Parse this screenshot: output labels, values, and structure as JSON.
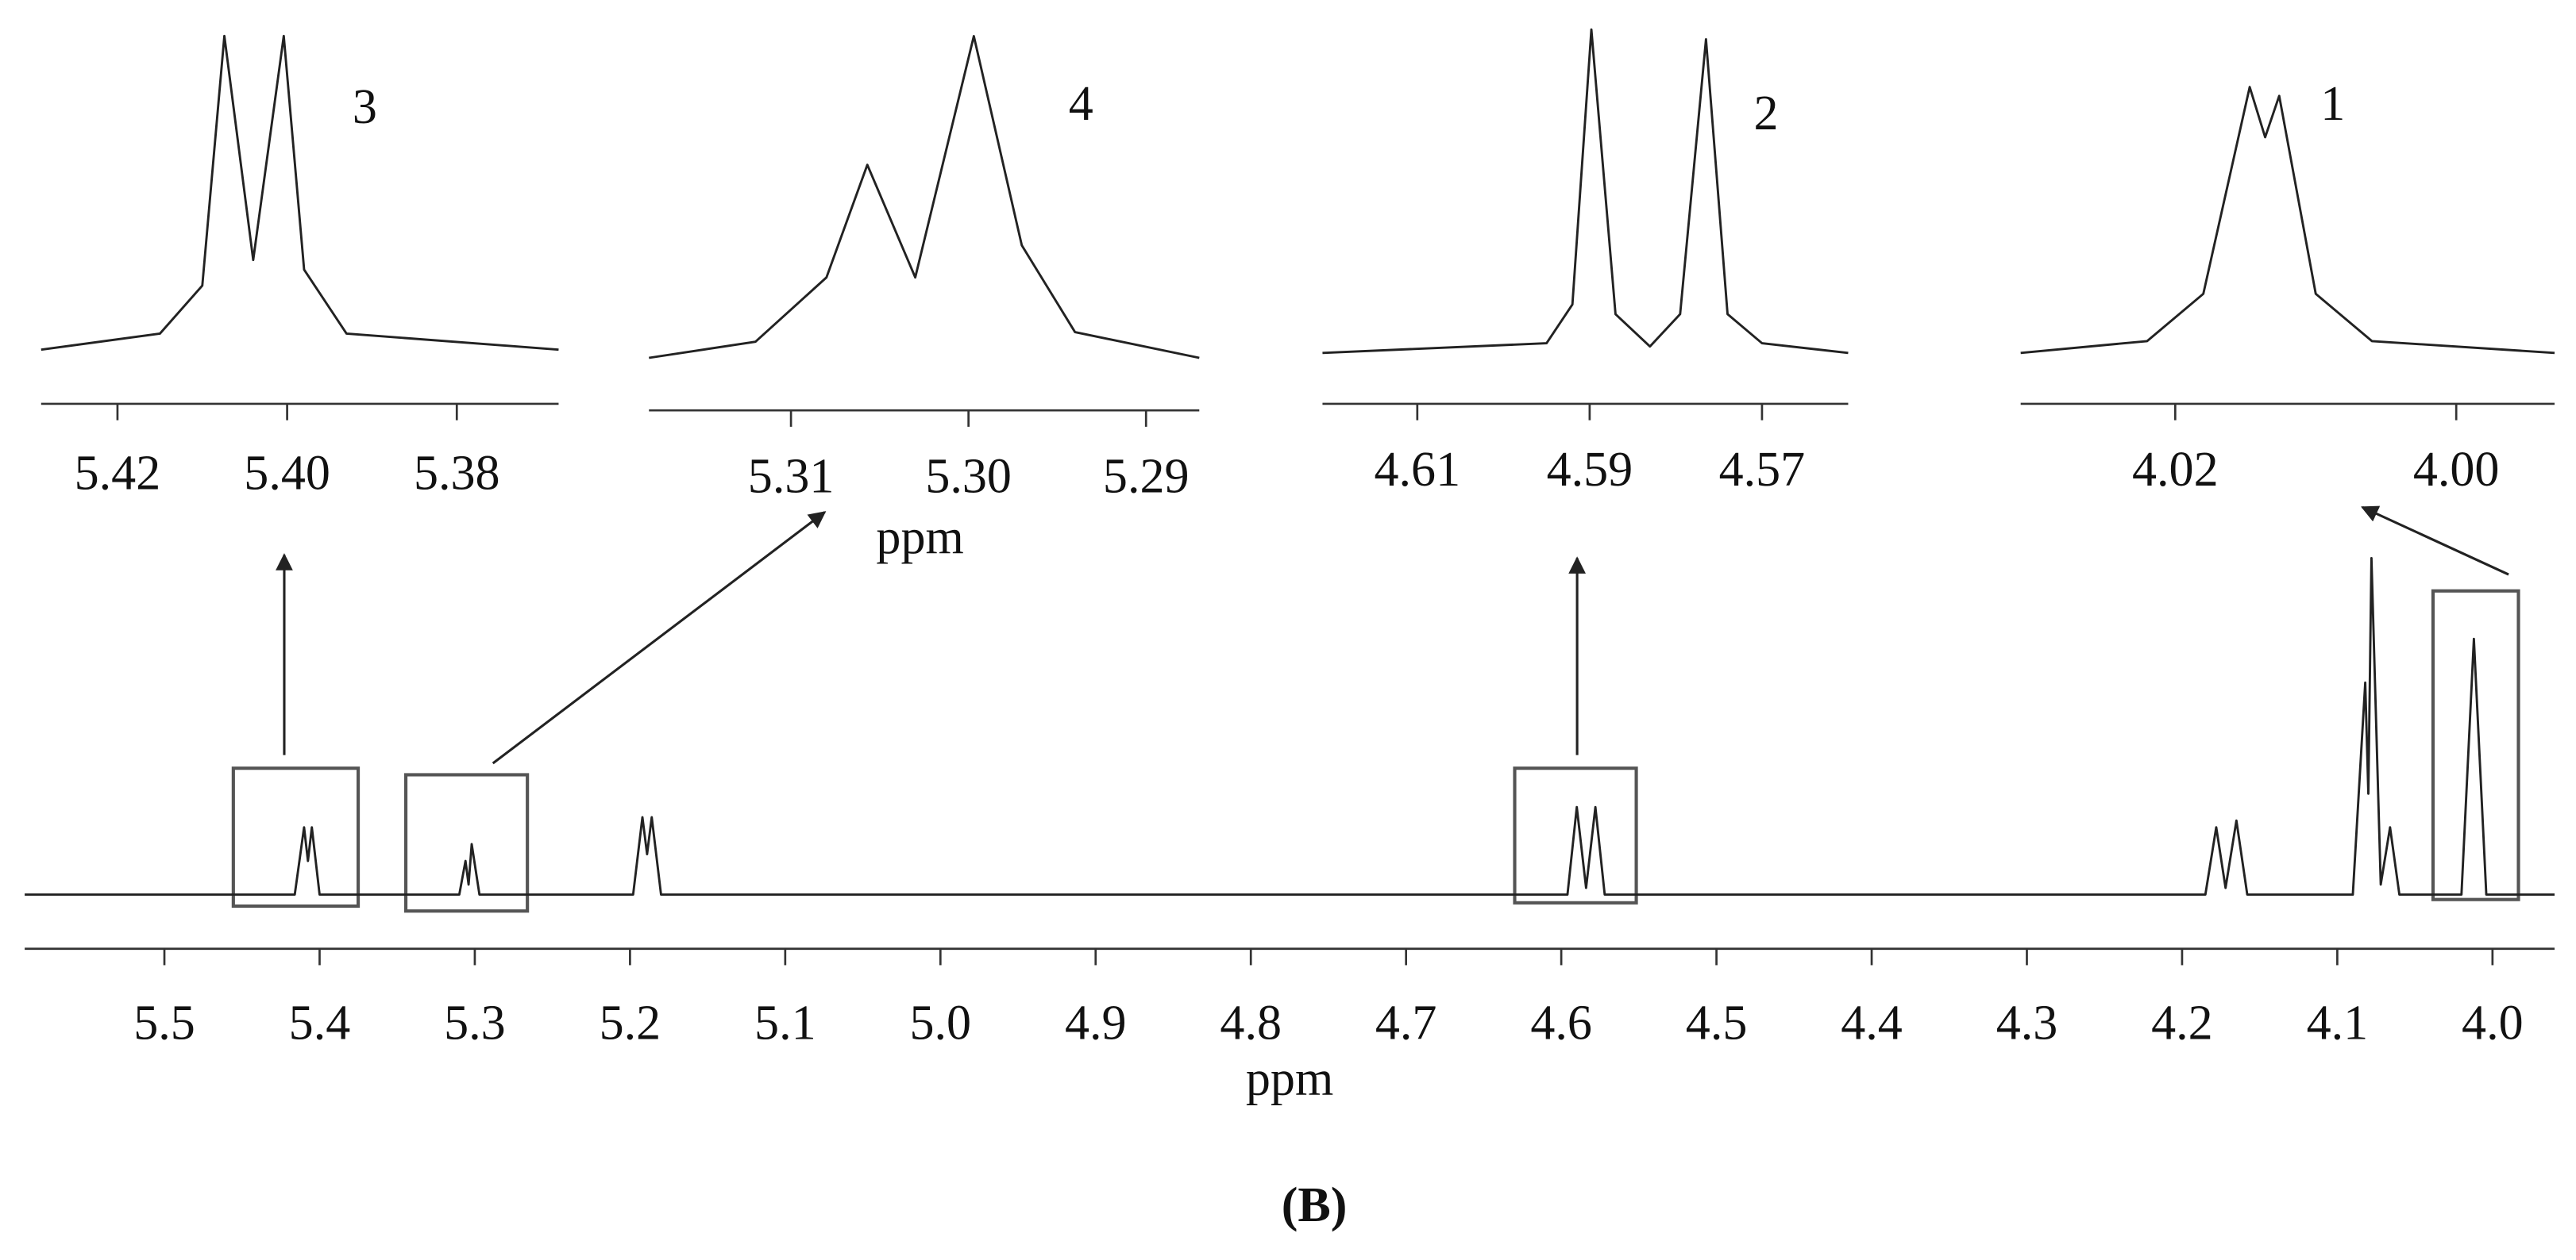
{
  "chart_data": [
    {
      "type": "line",
      "color": "#222222",
      "xlabel": "ppm",
      "x": [
        5.59,
        5.416,
        5.41,
        5.4075,
        5.405,
        5.4,
        5.31,
        5.306,
        5.304,
        5.302,
        5.297,
        5.198,
        5.192,
        5.189,
        5.186,
        5.18,
        4.596,
        4.59,
        4.584,
        4.578,
        4.572,
        4.185,
        4.178,
        4.172,
        4.165,
        4.158,
        4.09,
        4.082,
        4.08,
        4.078,
        4.072,
        4.066,
        4.06,
        4.02,
        4.012,
        4.004,
        3.96
      ],
      "values": [
        0,
        0,
        20,
        10,
        20,
        0,
        0,
        10,
        3,
        15,
        0,
        0,
        23,
        12,
        23,
        0,
        0,
        26,
        2,
        26,
        0,
        0,
        20,
        2,
        22,
        0,
        0,
        63,
        30,
        100,
        3,
        20,
        0,
        0,
        76,
        0,
        0
      ],
      "xlim": [
        5.59,
        3.96
      ],
      "ylim": [
        0,
        100
      ],
      "xticks": [
        5.5,
        5.4,
        5.3,
        5.2,
        5.1,
        {
          "value": 5,
          "label": "5.0"
        },
        4.9,
        4.8,
        4.7,
        4.6,
        4.5,
        4.4,
        4.3,
        4.2,
        4.1,
        {
          "value": 4,
          "label": "4.0"
        }
      ]
    },
    {
      "type": "line",
      "color": "#222222",
      "annotation": "3",
      "x": [
        5.429,
        5.415,
        5.41,
        5.4074,
        5.404,
        5.4004,
        5.398,
        5.393,
        5.368
      ],
      "values": [
        0,
        5,
        20,
        98,
        28,
        98,
        25,
        5,
        0
      ],
      "xlim": [
        5.429,
        5.368
      ],
      "ylim": [
        0,
        100
      ],
      "xticks": [
        5.42,
        {
          "value": 5.4,
          "label": "5.40"
        },
        5.38
      ]
    },
    {
      "type": "line",
      "color": "#222222",
      "annotation": "4",
      "xlabel": "ppm",
      "x": [
        5.318,
        5.312,
        5.308,
        5.3057,
        5.303,
        5.2997,
        5.297,
        5.294,
        5.287
      ],
      "values": [
        0,
        5,
        25,
        60,
        25,
        100,
        35,
        8,
        0
      ],
      "xlim": [
        5.318,
        5.287
      ],
      "ylim": [
        0,
        100
      ],
      "xticks": [
        5.31,
        {
          "value": 5.3,
          "label": "5.30"
        },
        5.29
      ]
    },
    {
      "type": "line",
      "color": "#222222",
      "annotation": "2",
      "x": [
        4.621,
        4.595,
        4.592,
        4.5898,
        4.587,
        4.583,
        4.5795,
        4.5765,
        4.574,
        4.57,
        4.56
      ],
      "values": [
        0,
        3,
        15,
        100,
        12,
        2,
        12,
        97,
        12,
        3,
        0
      ],
      "xlim": [
        4.621,
        4.56
      ],
      "ylim": [
        0,
        100
      ],
      "xticks": [
        4.61,
        4.59,
        4.57
      ]
    },
    {
      "type": "line",
      "color": "#222222",
      "annotation": "1",
      "x": [
        4.031,
        4.022,
        4.018,
        4.0147,
        4.0136,
        4.0126,
        4.01,
        4.006,
        3.993
      ],
      "values": [
        0,
        4,
        20,
        90,
        73,
        87,
        20,
        4,
        0
      ],
      "xlim": [
        4.031,
        3.993
      ],
      "ylim": [
        0,
        100
      ],
      "xticks": [
        4.02,
        {
          "value": 4,
          "label": "4.00"
        }
      ]
    }
  ],
  "caption": "(B)"
}
